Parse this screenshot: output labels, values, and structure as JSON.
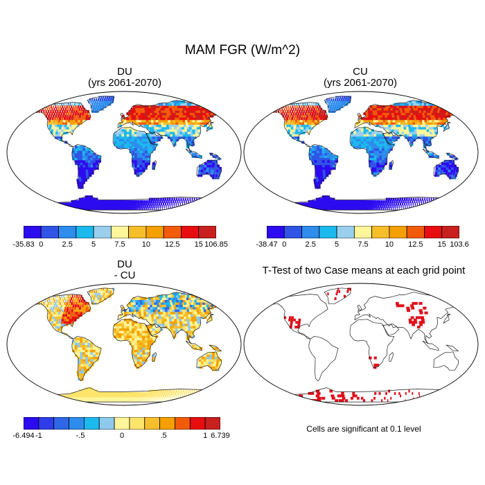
{
  "main_title": "MAM FGR (W/m^2)",
  "panels": [
    {
      "id": "du",
      "title_line1": "DU",
      "title_line2": "(yrs 2061-2070)"
    },
    {
      "id": "cu",
      "title_line1": "CU",
      "title_line2": "(yrs 2061-2070)"
    },
    {
      "id": "diff",
      "title_line1": "DU",
      "title_line2": "- CU"
    },
    {
      "id": "ttest",
      "title_line1": "T-Test of two Case means at each grid point"
    }
  ],
  "ttest_note": "Cells are significant at 0.1 level",
  "chart_data": [
    {
      "type": "heatmap",
      "title": "DU (yrs 2061-2070)",
      "colorbar": {
        "colors": [
          "#2C0BF0",
          "#2F54E6",
          "#2D8CEC",
          "#1CB9EE",
          "#9AD0EE",
          "#FFF59A",
          "#F6BE2A",
          "#F5A000",
          "#F25B0A",
          "#E80D10",
          "#C8201E"
        ],
        "tick_labels": [
          "-35.83",
          "0",
          "2.5",
          "5",
          "7.5",
          "10",
          "12.5",
          "15",
          "106.85"
        ],
        "min": -35.83,
        "max": 106.85,
        "levels": [
          0,
          2.5,
          5,
          7.5,
          10,
          12.5,
          15
        ]
      }
    },
    {
      "type": "heatmap",
      "title": "CU (yrs 2061-2070)",
      "colorbar": {
        "colors": [
          "#2C0BF0",
          "#2F54E6",
          "#2D8CEC",
          "#1CB9EE",
          "#9AD0EE",
          "#FFF59A",
          "#F6BE2A",
          "#F5A000",
          "#F25B0A",
          "#E80D10",
          "#C8201E"
        ],
        "tick_labels": [
          "-38.47",
          "0",
          "2.5",
          "5",
          "7.5",
          "10",
          "12.5",
          "15",
          "103.6"
        ],
        "min": -38.47,
        "max": 103.6,
        "levels": [
          0,
          2.5,
          5,
          7.5,
          10,
          12.5,
          15
        ]
      }
    },
    {
      "type": "heatmap",
      "title": "DU - CU",
      "colorbar": {
        "colors": [
          "#2C0BF0",
          "#2F3CEA",
          "#2F67E6",
          "#2D8CEC",
          "#1CB9EE",
          "#8FC9EE",
          "#FFF59A",
          "#FDE46A",
          "#F6BE2A",
          "#F5A000",
          "#F25B0A",
          "#E80D10",
          "#C8201E"
        ],
        "tick_labels": [
          "-6.494",
          "-1",
          "-.5",
          "0",
          ".5",
          "1",
          "6.739"
        ],
        "min": -6.494,
        "max": 6.739,
        "levels": [
          -1,
          -0.5,
          0,
          0.5,
          1
        ]
      }
    },
    {
      "type": "heatmap",
      "title": "T-Test of two Case means at each grid point",
      "significance_color": "#E0101A",
      "significance_level": 0.1
    }
  ]
}
